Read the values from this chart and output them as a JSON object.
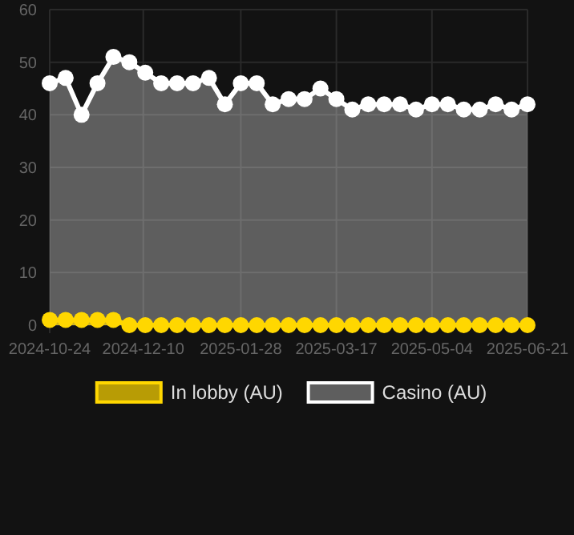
{
  "chart_data": {
    "type": "area",
    "x": [
      "2024-10-24",
      "2024-11-01",
      "2024-11-09",
      "2024-11-17",
      "2024-11-25",
      "2024-12-03",
      "2024-12-11",
      "2024-12-19",
      "2024-12-27",
      "2025-01-04",
      "2025-01-12",
      "2025-01-20",
      "2025-01-28",
      "2025-02-05",
      "2025-02-13",
      "2025-02-21",
      "2025-03-01",
      "2025-03-09",
      "2025-03-17",
      "2025-03-25",
      "2025-04-02",
      "2025-04-10",
      "2025-04-18",
      "2025-04-26",
      "2025-05-04",
      "2025-05-12",
      "2025-05-20",
      "2025-05-28",
      "2025-06-05",
      "2025-06-13",
      "2025-06-21"
    ],
    "series": [
      {
        "name": "In lobby (AU)",
        "color": "#ffd700",
        "values": [
          1,
          1,
          1,
          1,
          1,
          0,
          0,
          0,
          0,
          0,
          0,
          0,
          0,
          0,
          0,
          0,
          0,
          0,
          0,
          0,
          0,
          0,
          0,
          0,
          0,
          0,
          0,
          0,
          0,
          0,
          0
        ]
      },
      {
        "name": "Casino (AU)",
        "color": "#ffffff",
        "values": [
          46,
          47,
          40,
          46,
          51,
          50,
          48,
          46,
          46,
          46,
          47,
          42,
          46,
          46,
          42,
          43,
          43,
          45,
          43,
          41,
          42,
          42,
          42,
          41,
          42,
          42,
          41,
          41,
          42,
          41,
          42
        ]
      }
    ],
    "ylim": [
      0,
      60
    ],
    "yticks": [
      0,
      10,
      20,
      30,
      40,
      50,
      60
    ],
    "xlim": [
      "2024-10-24",
      "2025-06-21"
    ],
    "xticks": [
      "2024-10-24",
      "2024-12-10",
      "2025-01-28",
      "2025-03-17",
      "2025-05-04",
      "2025-06-21"
    ],
    "grid": true,
    "legend": "bottom",
    "marker": "circle"
  }
}
